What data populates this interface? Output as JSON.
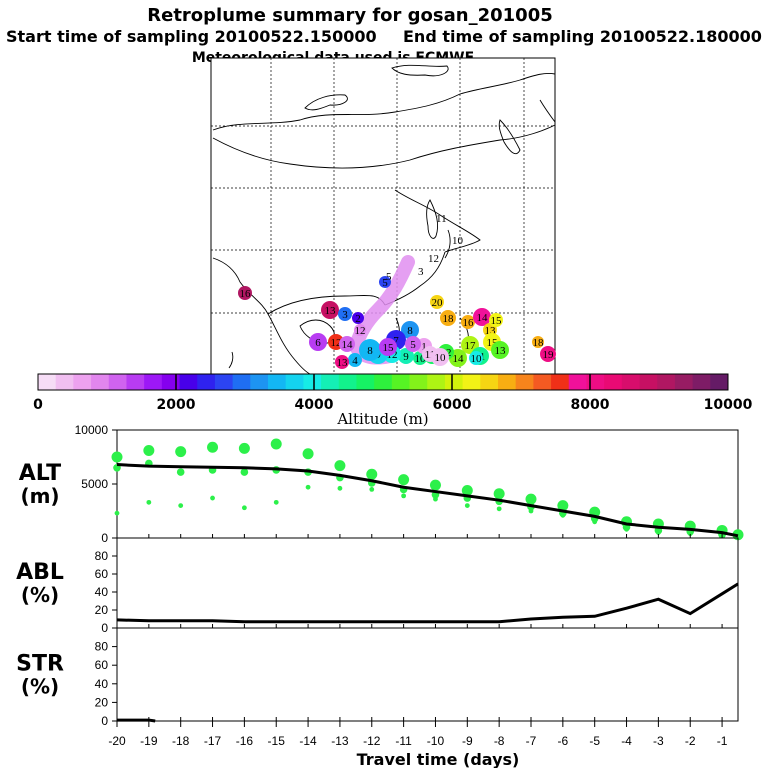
{
  "title": "Retroplume summary for gosan_201005",
  "start_label": "Start time of sampling 20100522.150000",
  "end_label": "End time of sampling 20100522.180000",
  "met_label": "Meteorological data used is ECMWF",
  "colorbar": {
    "ticks": [
      "0",
      "2000",
      "4000",
      "6000",
      "8000",
      "10000"
    ],
    "label": "Altitude (m)",
    "colors": [
      "#f6ddf6",
      "#f1bff1",
      "#eda2ef",
      "#e286ee",
      "#d063ef",
      "#b83cf2",
      "#9d18f6",
      "#8500ee",
      "#4800ea",
      "#2f22ef",
      "#2c44f2",
      "#1f6ef3",
      "#1d94f2",
      "#13b7f4",
      "#14d3ef",
      "#16ece6",
      "#14efb5",
      "#12f28c",
      "#16f364",
      "#2ef13d",
      "#56f424",
      "#83f21a",
      "#aef414",
      "#d3f30c",
      "#f2f316",
      "#f6d513",
      "#f8ae12",
      "#f7841c",
      "#f45a22",
      "#f03018",
      "#f0119a",
      "#ee0d84",
      "#e90a74",
      "#d80d6c",
      "#c61063",
      "#b01762",
      "#971c63",
      "#7e1c66",
      "#651b66"
    ]
  },
  "map": {
    "markers": [
      {
        "n": "16",
        "alt": 9200
      },
      {
        "n": "13",
        "alt": 8800
      },
      {
        "n": "3",
        "alt": 3000
      },
      {
        "n": "2",
        "alt": 2200
      },
      {
        "n": "5",
        "alt": 2600
      },
      {
        "n": "12",
        "alt": 7600
      },
      {
        "n": "6",
        "alt": 1500
      },
      {
        "n": "8",
        "alt": 3200
      },
      {
        "n": "7",
        "alt": 2500
      },
      {
        "n": "4",
        "alt": 3400
      },
      {
        "n": "20",
        "alt": 6500
      },
      {
        "n": "18",
        "alt": 6700
      },
      {
        "n": "16",
        "alt": 6800
      },
      {
        "n": "14",
        "alt": 7800
      },
      {
        "n": "13",
        "alt": 6600
      },
      {
        "n": "15",
        "alt": 6200
      },
      {
        "n": "17",
        "alt": 5700
      },
      {
        "n": "14",
        "alt": 5400
      },
      {
        "n": "12",
        "alt": 5000
      },
      {
        "n": "11",
        "alt": 4800
      },
      {
        "n": "10",
        "alt": 4400
      },
      {
        "n": "9",
        "alt": 4300
      },
      {
        "n": "11",
        "alt": 4600
      },
      {
        "n": "10",
        "alt": 4100
      },
      {
        "n": "13",
        "alt": 5200
      },
      {
        "n": "12",
        "alt": 3900
      },
      {
        "n": "9",
        "alt": 3700
      },
      {
        "n": "8",
        "alt": 3500
      },
      {
        "n": "15",
        "alt": 6300
      },
      {
        "n": "1",
        "alt": 600
      },
      {
        "n": "11",
        "alt": 500
      },
      {
        "n": "10",
        "alt": 400
      },
      {
        "n": "12",
        "alt": 800
      },
      {
        "n": "14",
        "alt": 1200
      },
      {
        "n": "15",
        "alt": 1300
      },
      {
        "n": "5",
        "alt": 1100
      },
      {
        "n": "19",
        "alt": 8200
      },
      {
        "n": "13",
        "alt": 8000
      },
      {
        "n": "18",
        "alt": 6700
      }
    ]
  },
  "chart_data": [
    {
      "type": "line",
      "name": "ALT",
      "ylabel_line1": "ALT",
      "ylabel_line2": "(m)",
      "ylim": [
        0,
        10000
      ],
      "yticks": [
        "10000",
        "5000",
        "0"
      ],
      "x": [
        -20,
        -19,
        -18,
        -17,
        -16,
        -15,
        -14,
        -13,
        -12,
        -11,
        -10,
        -9,
        -8,
        -7,
        -6,
        -5,
        -4,
        -3,
        -2,
        -1,
        -0.5
      ],
      "mean": [
        6800,
        6650,
        6600,
        6550,
        6500,
        6400,
        6200,
        5800,
        5300,
        4700,
        4300,
        3900,
        3500,
        3000,
        2500,
        2000,
        1300,
        1000,
        800,
        500,
        200
      ],
      "scatter_upper": [
        7500,
        8100,
        8000,
        8400,
        8300,
        8700,
        7800,
        6700,
        5900,
        5400,
        4900,
        4400,
        4100,
        3600,
        3000,
        2400,
        1500,
        1300,
        1100,
        700,
        300
      ],
      "scatter_mid": [
        6500,
        6900,
        6100,
        6300,
        6100,
        6300,
        6100,
        5600,
        5100,
        4500,
        4000,
        3700,
        3400,
        2900,
        2300,
        1800,
        1000,
        700,
        600,
        300,
        200
      ],
      "scatter_low": [
        2300,
        3300,
        3000,
        3700,
        2800,
        3300,
        4700,
        4600,
        4500,
        3900,
        3600,
        3000,
        2700,
        2500,
        2100,
        1500,
        800,
        500,
        400,
        200,
        100
      ]
    },
    {
      "type": "line",
      "name": "ABL",
      "ylabel_line1": "ABL",
      "ylabel_line2": "(%)",
      "ylim": [
        0,
        100
      ],
      "yticks": [
        "80",
        "60",
        "40",
        "20",
        "0"
      ],
      "x": [
        -20,
        -19,
        -18,
        -17,
        -16,
        -15,
        -14,
        -13,
        -12,
        -11,
        -10,
        -9,
        -8,
        -7,
        -6,
        -5,
        -4,
        -3,
        -2,
        -1,
        -0.5
      ],
      "values": [
        9,
        8,
        8,
        8,
        7,
        7,
        7,
        7,
        7,
        7,
        7,
        7,
        7,
        10,
        12,
        13,
        22,
        32,
        16,
        38,
        49
      ]
    },
    {
      "type": "line",
      "name": "STR",
      "ylabel_line1": "STR",
      "ylabel_line2": "(%)",
      "ylim": [
        0,
        100
      ],
      "yticks": [
        "80",
        "60",
        "40",
        "20",
        "0"
      ],
      "x": [
        -20,
        -19.5,
        -19,
        -18.8
      ],
      "values": [
        1,
        1,
        1,
        0
      ]
    }
  ],
  "x_axis": {
    "ticks": [
      "-20",
      "-19",
      "-18",
      "-17",
      "-16",
      "-15",
      "-14",
      "-13",
      "-12",
      "-11",
      "-10",
      "-9",
      "-8",
      "-7",
      "-6",
      "-5",
      "-4",
      "-3",
      "-2",
      "-1"
    ],
    "label": "Travel time (days)"
  }
}
